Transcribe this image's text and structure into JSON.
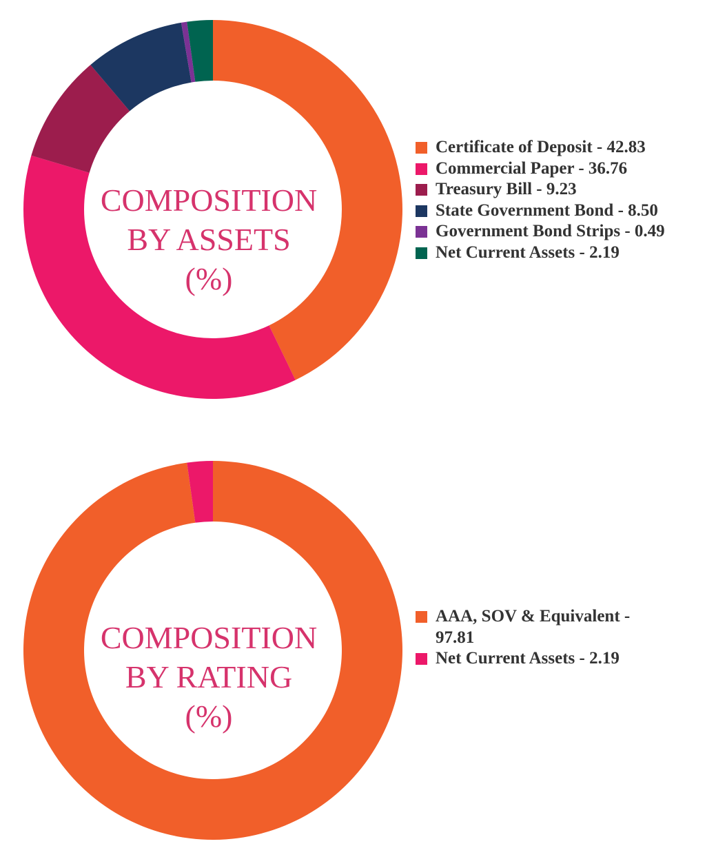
{
  "chart_data": [
    {
      "type": "pie",
      "title": "COMPOSITION BY ASSETS (%)",
      "title_lines": [
        "COMPOSITION",
        "BY ASSETS",
        "(%)"
      ],
      "slices": [
        {
          "label": "Certificate of Deposit - 42.83",
          "value": 42.83,
          "color": "#f15f2a"
        },
        {
          "label": "Commercial Paper - 36.76",
          "value": 36.76,
          "color": "#ec1869"
        },
        {
          "label": "Treasury Bill - 9.23",
          "value": 9.23,
          "color": "#9c1d4d"
        },
        {
          "label": "State Government Bond - 8.50",
          "value": 8.5,
          "color": "#1c3761"
        },
        {
          "label": "Government Bond Strips - 0.49",
          "value": 0.49,
          "color": "#7b3294"
        },
        {
          "label": "Net Current Assets - 2.19",
          "value": 2.19,
          "color": "#006450"
        }
      ]
    },
    {
      "type": "pie",
      "title": "COMPOSITION BY RATING (%)",
      "title_lines": [
        "COMPOSITION",
        "BY RATING",
        "(%)"
      ],
      "slices": [
        {
          "label": "AAA, SOV & Equivalent - 97.81",
          "value": 97.81,
          "color": "#f15f2a"
        },
        {
          "label": "Net Current Assets - 2.19",
          "value": 2.19,
          "color": "#ec1869"
        }
      ]
    }
  ]
}
